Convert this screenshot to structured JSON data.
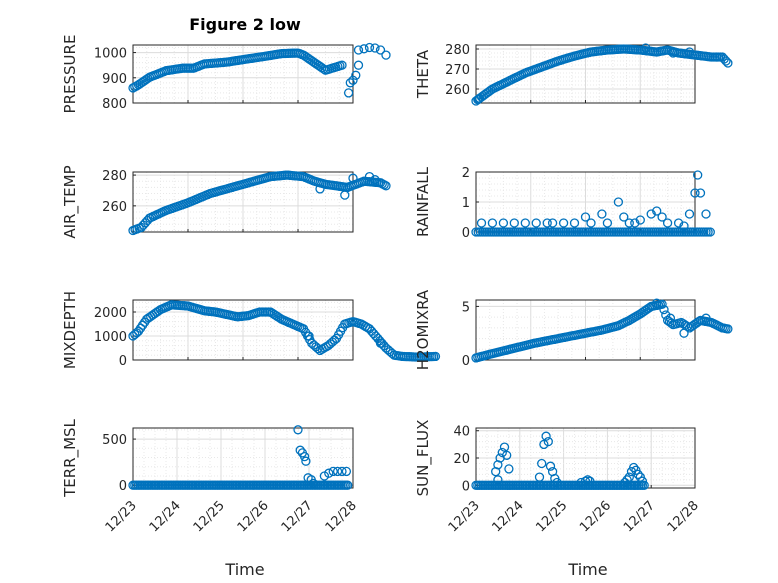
{
  "figure_title": "Figure 2 low",
  "x_ticks": [
    "12/23",
    "12/24",
    "12/25",
    "12/26",
    "12/27",
    "12/28"
  ],
  "x_range": [
    "12/23",
    "12/28"
  ],
  "x_label": "Time",
  "marker": "open-circle",
  "marker_color": "#0072bd",
  "chart_data": [
    {
      "type": "scatter",
      "title": "Figure 2 low",
      "ylabel": "PRESSURE",
      "ylim": [
        800,
        1030
      ],
      "yticks": [
        "800",
        "900",
        "1000"
      ],
      "xlim": [
        "12/23",
        "12/27"
      ],
      "grid": true,
      "anchors": [
        [
          0,
          860
        ],
        [
          0.1,
          872
        ],
        [
          0.3,
          902
        ],
        [
          0.6,
          928
        ],
        [
          0.9,
          938
        ],
        [
          1.1,
          938
        ],
        [
          1.3,
          955
        ],
        [
          1.7,
          962
        ],
        [
          2.0,
          972
        ],
        [
          2.4,
          985
        ],
        [
          2.7,
          996
        ],
        [
          3.0,
          998
        ],
        [
          3.1,
          990
        ],
        [
          3.3,
          960
        ],
        [
          3.5,
          930
        ],
        [
          3.65,
          940
        ],
        [
          3.8,
          950
        ]
      ],
      "extra_points": [
        [
          3.92,
          840
        ],
        [
          3.95,
          880
        ],
        [
          4.0,
          890
        ],
        [
          4.05,
          910
        ],
        [
          4.1,
          950
        ],
        [
          4.1,
          1010
        ],
        [
          4.2,
          1015
        ],
        [
          4.3,
          1020
        ],
        [
          4.4,
          1018
        ],
        [
          4.5,
          1010
        ],
        [
          4.6,
          990
        ]
      ]
    },
    {
      "type": "scatter",
      "ylabel": "THETA",
      "ylim": [
        253,
        282
      ],
      "yticks": [
        "260",
        "270",
        "280"
      ],
      "xlim": [
        "12/23",
        "12/27"
      ],
      "grid": true,
      "anchors": [
        [
          0,
          254
        ],
        [
          0.1,
          256
        ],
        [
          0.3,
          260
        ],
        [
          0.6,
          264
        ],
        [
          0.9,
          268
        ],
        [
          1.2,
          271
        ],
        [
          1.5,
          274
        ],
        [
          1.8,
          276.5
        ],
        [
          2.1,
          278.5
        ],
        [
          2.4,
          279.5
        ],
        [
          2.7,
          280
        ],
        [
          3.0,
          279.5
        ],
        [
          3.3,
          278.5
        ],
        [
          3.5,
          279.5
        ],
        [
          3.7,
          278
        ],
        [
          4.0,
          277
        ],
        [
          4.3,
          276
        ],
        [
          4.5,
          276
        ],
        [
          4.6,
          273
        ]
      ],
      "extra_points": [
        [
          0.05,
          255
        ],
        [
          3.1,
          280.5
        ],
        [
          3.6,
          278
        ],
        [
          3.9,
          278.5
        ],
        [
          4.4,
          276
        ]
      ]
    },
    {
      "type": "scatter",
      "ylabel": "AIR_TEMP",
      "ylim": [
        243,
        282
      ],
      "yticks": [
        "260",
        "280"
      ],
      "xlim": [
        "12/23",
        "12/27"
      ],
      "grid": true,
      "anchors": [
        [
          0,
          244
        ],
        [
          0.15,
          246
        ],
        [
          0.3,
          252
        ],
        [
          0.6,
          257
        ],
        [
          1.0,
          262
        ],
        [
          1.4,
          268
        ],
        [
          1.8,
          272
        ],
        [
          2.2,
          276
        ],
        [
          2.5,
          279
        ],
        [
          2.8,
          280
        ],
        [
          3.1,
          279
        ],
        [
          3.3,
          276
        ],
        [
          3.5,
          274
        ],
        [
          3.7,
          273
        ],
        [
          3.9,
          272
        ],
        [
          4.2,
          276
        ],
        [
          4.5,
          275
        ],
        [
          4.6,
          273
        ]
      ],
      "extra_points": [
        [
          3.85,
          267
        ],
        [
          4.0,
          278
        ],
        [
          4.3,
          279
        ],
        [
          4.4,
          277
        ],
        [
          3.4,
          271
        ]
      ]
    },
    {
      "type": "scatter",
      "ylabel": "RAINFALL",
      "ylim": [
        0,
        2
      ],
      "yticks": [
        "0",
        "1",
        "2"
      ],
      "xlim": [
        "12/23",
        "12/27"
      ],
      "grid": true,
      "baseline": 0,
      "points": [
        [
          0.1,
          0.3
        ],
        [
          0.3,
          0.3
        ],
        [
          0.5,
          0.3
        ],
        [
          0.7,
          0.3
        ],
        [
          0.9,
          0.3
        ],
        [
          1.1,
          0.3
        ],
        [
          1.3,
          0.3
        ],
        [
          1.4,
          0.3
        ],
        [
          1.6,
          0.3
        ],
        [
          1.8,
          0.3
        ],
        [
          2.0,
          0.5
        ],
        [
          2.1,
          0.3
        ],
        [
          2.3,
          0.6
        ],
        [
          2.4,
          0.3
        ],
        [
          2.6,
          1.0
        ],
        [
          2.7,
          0.5
        ],
        [
          2.8,
          0.3
        ],
        [
          2.9,
          0.3
        ],
        [
          3.0,
          0.4
        ],
        [
          3.2,
          0.6
        ],
        [
          3.3,
          0.7
        ],
        [
          3.4,
          0.5
        ],
        [
          3.5,
          0.3
        ],
        [
          3.7,
          0.3
        ],
        [
          3.8,
          0.2
        ],
        [
          3.9,
          0.6
        ],
        [
          4.0,
          1.3
        ],
        [
          4.05,
          1.9
        ],
        [
          4.1,
          1.3
        ],
        [
          4.2,
          0.6
        ]
      ]
    },
    {
      "type": "scatter",
      "ylabel": "MIXDEPTH",
      "ylim": [
        0,
        2500
      ],
      "yticks": [
        "0",
        "1000",
        "2000"
      ],
      "xlim": [
        "12/23",
        "12/27"
      ],
      "grid": true,
      "anchors": [
        [
          0,
          1000
        ],
        [
          0.1,
          1200
        ],
        [
          0.25,
          1700
        ],
        [
          0.5,
          2100
        ],
        [
          0.7,
          2300
        ],
        [
          1.0,
          2250
        ],
        [
          1.3,
          2050
        ],
        [
          1.5,
          2000
        ],
        [
          1.7,
          1900
        ],
        [
          1.9,
          1800
        ],
        [
          2.1,
          1850
        ],
        [
          2.3,
          2000
        ],
        [
          2.5,
          2000
        ],
        [
          2.7,
          1700
        ],
        [
          2.9,
          1500
        ],
        [
          3.1,
          1300
        ],
        [
          3.25,
          700
        ],
        [
          3.4,
          400
        ],
        [
          3.55,
          600
        ],
        [
          3.7,
          900
        ],
        [
          3.85,
          1500
        ],
        [
          4.0,
          1600
        ],
        [
          4.15,
          1500
        ],
        [
          4.3,
          1300
        ],
        [
          4.45,
          900
        ],
        [
          4.6,
          500
        ],
        [
          4.75,
          200
        ],
        [
          4.9,
          150
        ],
        [
          5.2,
          120
        ],
        [
          5.5,
          150
        ]
      ],
      "extra_points": [
        [
          3.2,
          1000
        ],
        [
          4.5,
          700
        ]
      ]
    },
    {
      "type": "scatter",
      "ylabel": "H2OMIXRA",
      "ylim": [
        0,
        5.6
      ],
      "yticks": [
        "0",
        "5"
      ],
      "xlim": [
        "12/23",
        "12/27"
      ],
      "grid": true,
      "anchors": [
        [
          0,
          0.2
        ],
        [
          0.3,
          0.6
        ],
        [
          0.7,
          1.1
        ],
        [
          1.1,
          1.6
        ],
        [
          1.5,
          2.0
        ],
        [
          1.9,
          2.4
        ],
        [
          2.3,
          2.8
        ],
        [
          2.6,
          3.2
        ],
        [
          2.8,
          3.7
        ],
        [
          3.0,
          4.3
        ],
        [
          3.2,
          5.0
        ],
        [
          3.4,
          5.2
        ],
        [
          3.5,
          3.7
        ],
        [
          3.6,
          3.3
        ],
        [
          3.75,
          3.5
        ],
        [
          3.9,
          3.0
        ],
        [
          4.1,
          3.7
        ],
        [
          4.3,
          3.5
        ],
        [
          4.5,
          3.0
        ],
        [
          4.6,
          2.9
        ]
      ],
      "extra_points": [
        [
          3.3,
          5.3
        ],
        [
          3.8,
          2.5
        ],
        [
          4.2,
          3.9
        ],
        [
          3.55,
          3.9
        ]
      ]
    },
    {
      "type": "scatter",
      "ylabel": "TERR_MSL",
      "ylim": [
        -30,
        620
      ],
      "yticks": [
        "0",
        "500"
      ],
      "xlim": [
        "12/23",
        "12/28"
      ],
      "grid": true,
      "baseline": 0,
      "baseline_range": [
        0,
        4.9
      ],
      "points": [
        [
          3.75,
          600
        ],
        [
          3.8,
          380
        ],
        [
          3.85,
          350
        ],
        [
          3.9,
          310
        ],
        [
          3.93,
          260
        ],
        [
          3.98,
          80
        ],
        [
          4.05,
          60
        ],
        [
          4.1,
          20
        ],
        [
          4.35,
          100
        ],
        [
          4.45,
          130
        ],
        [
          4.55,
          150
        ],
        [
          4.65,
          150
        ],
        [
          4.75,
          150
        ],
        [
          4.85,
          150
        ]
      ]
    },
    {
      "type": "scatter",
      "ylabel": "SUN_FLUX",
      "ylim": [
        -2,
        42
      ],
      "yticks": [
        "0",
        "20",
        "40"
      ],
      "xlim": [
        "12/23",
        "12/28"
      ],
      "grid": true,
      "baseline": 0,
      "baseline_range": [
        0,
        3.85
      ],
      "points": [
        [
          0.45,
          10
        ],
        [
          0.5,
          15
        ],
        [
          0.55,
          20
        ],
        [
          0.6,
          24
        ],
        [
          0.65,
          28
        ],
        [
          0.7,
          22
        ],
        [
          0.75,
          12
        ],
        [
          0.5,
          4
        ],
        [
          1.45,
          6
        ],
        [
          1.5,
          16
        ],
        [
          1.55,
          30
        ],
        [
          1.6,
          36
        ],
        [
          1.65,
          32
        ],
        [
          1.7,
          14
        ],
        [
          1.75,
          10
        ],
        [
          1.8,
          5
        ],
        [
          1.85,
          2
        ],
        [
          2.4,
          2
        ],
        [
          2.5,
          3
        ],
        [
          2.55,
          4
        ],
        [
          2.6,
          3
        ],
        [
          3.4,
          2
        ],
        [
          3.45,
          4
        ],
        [
          3.5,
          6
        ],
        [
          3.55,
          10
        ],
        [
          3.6,
          13
        ],
        [
          3.65,
          11
        ],
        [
          3.7,
          8
        ],
        [
          3.75,
          6
        ],
        [
          3.8,
          3
        ]
      ]
    }
  ]
}
